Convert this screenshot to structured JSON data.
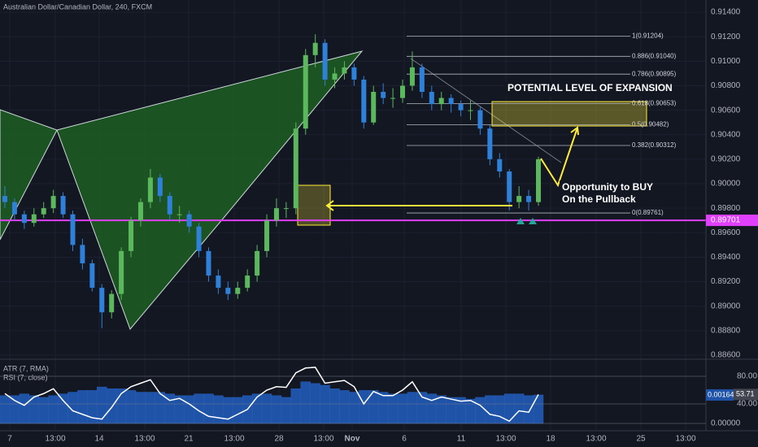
{
  "chart_data": {
    "type": "candlestick",
    "title": "Australian Dollar/Canadian Dollar, 240, FXCM",
    "up_color": "#5cb85c",
    "down_color": "#2f80d8",
    "ylim": [
      0.8858,
      0.915
    ],
    "yticks": [
      {
        "value": 0.914,
        "label": "0.91400"
      },
      {
        "value": 0.912,
        "label": "0.91200"
      },
      {
        "value": 0.91,
        "label": "0.91000"
      },
      {
        "value": 0.908,
        "label": "0.90800"
      },
      {
        "value": 0.906,
        "label": "0.90600"
      },
      {
        "value": 0.904,
        "label": "0.90400"
      },
      {
        "value": 0.902,
        "label": "0.90200"
      },
      {
        "value": 0.9,
        "label": "0.90000"
      },
      {
        "value": 0.898,
        "label": "0.89800"
      },
      {
        "value": 0.896,
        "label": "0.89600"
      },
      {
        "value": 0.894,
        "label": "0.89400"
      },
      {
        "value": 0.892,
        "label": "0.89200"
      },
      {
        "value": 0.89,
        "label": "0.89000"
      },
      {
        "value": 0.888,
        "label": "0.88800"
      },
      {
        "value": 0.886,
        "label": "0.88600"
      }
    ],
    "x_labels": [
      "7",
      "13:00",
      "14",
      "13:00",
      "21",
      "13:00",
      "28",
      "13:00",
      "Nov",
      "6",
      "11",
      "13:00",
      "18",
      "13:00",
      "25",
      "13:00"
    ],
    "candles": [
      [
        0.899,
        0.8998,
        0.898,
        0.8985
      ],
      [
        0.8985,
        0.8988,
        0.897,
        0.8975
      ],
      [
        0.8975,
        0.8978,
        0.8963,
        0.8968
      ],
      [
        0.8968,
        0.898,
        0.8965,
        0.8975
      ],
      [
        0.8975,
        0.8985,
        0.8972,
        0.898
      ],
      [
        0.898,
        0.8995,
        0.8976,
        0.899
      ],
      [
        0.899,
        0.8993,
        0.8972,
        0.8975
      ],
      [
        0.8975,
        0.8978,
        0.8945,
        0.895
      ],
      [
        0.895,
        0.8955,
        0.893,
        0.8935
      ],
      [
        0.8935,
        0.8938,
        0.8912,
        0.8915
      ],
      [
        0.8915,
        0.8918,
        0.8882,
        0.8895
      ],
      [
        0.8895,
        0.8913,
        0.889,
        0.891
      ],
      [
        0.891,
        0.8948,
        0.8905,
        0.8945
      ],
      [
        0.8945,
        0.8973,
        0.894,
        0.897
      ],
      [
        0.897,
        0.8988,
        0.8965,
        0.8985
      ],
      [
        0.8985,
        0.9012,
        0.898,
        0.9005
      ],
      [
        0.9005,
        0.9008,
        0.8985,
        0.899
      ],
      [
        0.899,
        0.8993,
        0.897,
        0.8975
      ],
      [
        0.8975,
        0.8982,
        0.8968,
        0.8975
      ],
      [
        0.8975,
        0.8978,
        0.896,
        0.8965
      ],
      [
        0.8965,
        0.8968,
        0.894,
        0.8945
      ],
      [
        0.8945,
        0.8948,
        0.892,
        0.8925
      ],
      [
        0.8925,
        0.893,
        0.891,
        0.8915
      ],
      [
        0.8915,
        0.892,
        0.8905,
        0.891
      ],
      [
        0.891,
        0.892,
        0.8906,
        0.8915
      ],
      [
        0.8915,
        0.893,
        0.8912,
        0.8925
      ],
      [
        0.8925,
        0.895,
        0.892,
        0.8945
      ],
      [
        0.8945,
        0.8975,
        0.894,
        0.897
      ],
      [
        0.897,
        0.8988,
        0.8965,
        0.898
      ],
      [
        0.898,
        0.8985,
        0.8972,
        0.898
      ],
      [
        0.898,
        0.905,
        0.8975,
        0.9045
      ],
      [
        0.9045,
        0.911,
        0.904,
        0.9105
      ],
      [
        0.9105,
        0.9122,
        0.9095,
        0.9115
      ],
      [
        0.9115,
        0.9118,
        0.908,
        0.9085
      ],
      [
        0.9085,
        0.9095,
        0.9078,
        0.909
      ],
      [
        0.909,
        0.91,
        0.9085,
        0.9095
      ],
      [
        0.9095,
        0.9098,
        0.908,
        0.9085
      ],
      [
        0.9085,
        0.9088,
        0.9045,
        0.905
      ],
      [
        0.905,
        0.908,
        0.9048,
        0.9075
      ],
      [
        0.9075,
        0.9082,
        0.9065,
        0.907
      ],
      [
        0.907,
        0.9078,
        0.9062,
        0.907
      ],
      [
        0.907,
        0.9085,
        0.9066,
        0.908
      ],
      [
        0.908,
        0.9108,
        0.9076,
        0.9095
      ],
      [
        0.9095,
        0.9098,
        0.907,
        0.9075
      ],
      [
        0.9075,
        0.908,
        0.906,
        0.9065
      ],
      [
        0.9065,
        0.9075,
        0.906,
        0.907
      ],
      [
        0.907,
        0.9073,
        0.9058,
        0.9065
      ],
      [
        0.9065,
        0.9068,
        0.9055,
        0.906
      ],
      [
        0.906,
        0.9068,
        0.9052,
        0.906
      ],
      [
        0.906,
        0.9063,
        0.904,
        0.9045
      ],
      [
        0.9045,
        0.9048,
        0.9015,
        0.902
      ],
      [
        0.902,
        0.9025,
        0.9005,
        0.901
      ],
      [
        0.901,
        0.9012,
        0.8978,
        0.8985
      ],
      [
        0.8985,
        0.8998,
        0.898,
        0.899
      ],
      [
        0.899,
        0.8995,
        0.8978,
        0.8985
      ],
      [
        0.8985,
        0.9022,
        0.8982,
        0.902
      ]
    ],
    "horizontal_line": {
      "value": 0.89701,
      "label": "0.89701",
      "color": "#e040fb"
    },
    "fib_levels": [
      {
        "value": 0.91204,
        "label": "1(0.91204)"
      },
      {
        "value": 0.9104,
        "label": "0.886(0.91040)"
      },
      {
        "value": 0.90895,
        "label": "0.786(0.90895)"
      },
      {
        "value": 0.90653,
        "label": "0.618(0.90653)"
      },
      {
        "value": 0.90482,
        "label": "0.5(0.90482)"
      },
      {
        "value": 0.90312,
        "label": "0.382(0.90312)"
      },
      {
        "value": 0.89761,
        "label": "0(0.89761)"
      }
    ],
    "annotations": {
      "expansion": "POTENTIAL LEVEL OF EXPANSION",
      "buy": [
        "Opportunity to BUY",
        "On the Pullback"
      ]
    },
    "atr": {
      "name": "ATR (7, RMA)",
      "color": "#1e53a8",
      "ylim": [
        0,
        0.0025
      ],
      "yticks": [
        {
          "value": 0,
          "label": "0.00000"
        }
      ],
      "values": [
        0.0016,
        0.0016,
        0.0017,
        0.0016,
        0.0015,
        0.0016,
        0.0017,
        0.0018,
        0.0019,
        0.0019,
        0.0021,
        0.002,
        0.002,
        0.0019,
        0.0018,
        0.0018,
        0.0018,
        0.0017,
        0.0016,
        0.0016,
        0.0017,
        0.0017,
        0.0016,
        0.0015,
        0.0015,
        0.0016,
        0.0017,
        0.0017,
        0.0016,
        0.0015,
        0.002,
        0.0024,
        0.0023,
        0.0022,
        0.002,
        0.0019,
        0.0018,
        0.0019,
        0.0019,
        0.0018,
        0.0017,
        0.0017,
        0.0018,
        0.0018,
        0.0017,
        0.0016,
        0.0015,
        0.0015,
        0.0014,
        0.0015,
        0.0016,
        0.0016,
        0.0017,
        0.0017,
        0.0016,
        0.00164
      ]
    },
    "rsi": {
      "name": "RSI (7, close)",
      "color": "#ffffff",
      "ylim": [
        0,
        100
      ],
      "yticks": [
        {
          "value": 80,
          "label": "80.00"
        },
        {
          "value": 40,
          "label": "40.00"
        }
      ],
      "values": [
        55,
        45,
        38,
        50,
        55,
        62,
        45,
        30,
        25,
        20,
        18,
        35,
        55,
        65,
        70,
        75,
        55,
        45,
        48,
        40,
        30,
        22,
        20,
        18,
        25,
        32,
        50,
        60,
        65,
        64,
        85,
        92,
        93,
        70,
        72,
        74,
        65,
        40,
        58,
        52,
        52,
        60,
        72,
        50,
        45,
        50,
        47,
        44,
        45,
        38,
        25,
        22,
        15,
        30,
        28,
        53.71
      ]
    }
  }
}
